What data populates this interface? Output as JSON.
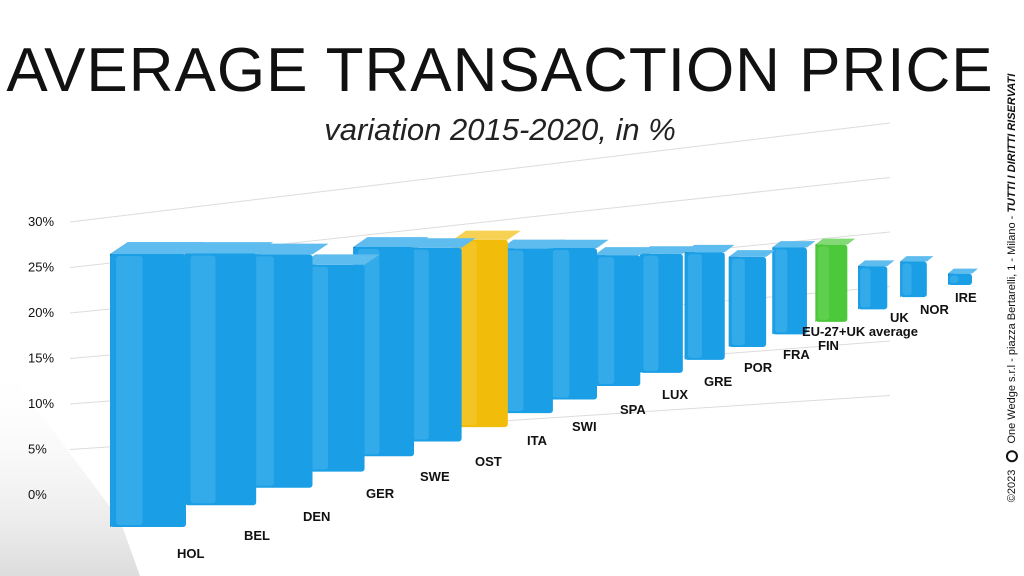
{
  "title": "AVERAGE TRANSACTION PRICE",
  "subtitle": "variation 2015-2020, in %",
  "footer": {
    "copyright": "©2023",
    "company": "One Wedge s.r.l - piazza Bertarelli, 1 - Milano - ",
    "rights": "TUTTI I DIRITTI RISERVATI",
    "logo_icon": "one-wedge-logo-icon"
  },
  "colors": {
    "default": "#1a9fe6",
    "highlight_ita": "#f2bd0a",
    "highlight_eu": "#4cc93a"
  },
  "chart_data": {
    "type": "bar",
    "title": "AVERAGE TRANSACTION PRICE",
    "subtitle": "variation 2015-2020, in %",
    "xlabel": "",
    "ylabel": "",
    "ylim": [
      0,
      30
    ],
    "yticks": [
      "0%",
      "5%",
      "10%",
      "15%",
      "20%",
      "25%",
      "30%"
    ],
    "grid": true,
    "categories": [
      "HOL",
      "BEL",
      "DEN",
      "GER",
      "SWE",
      "OST",
      "ITA",
      "SWI",
      "SPA",
      "LUX",
      "GRE",
      "POR",
      "FRA",
      "FIN",
      "EU-27+UK average",
      "UK",
      "NOR",
      "IRE"
    ],
    "values": [
      26,
      25,
      24,
      22,
      23,
      22,
      22,
      20,
      19,
      17,
      16,
      15,
      13,
      13,
      12,
      7,
      6,
      2
    ],
    "highlight": {
      "ITA": "highlight_ita",
      "EU-27+UK average": "highlight_eu"
    }
  }
}
